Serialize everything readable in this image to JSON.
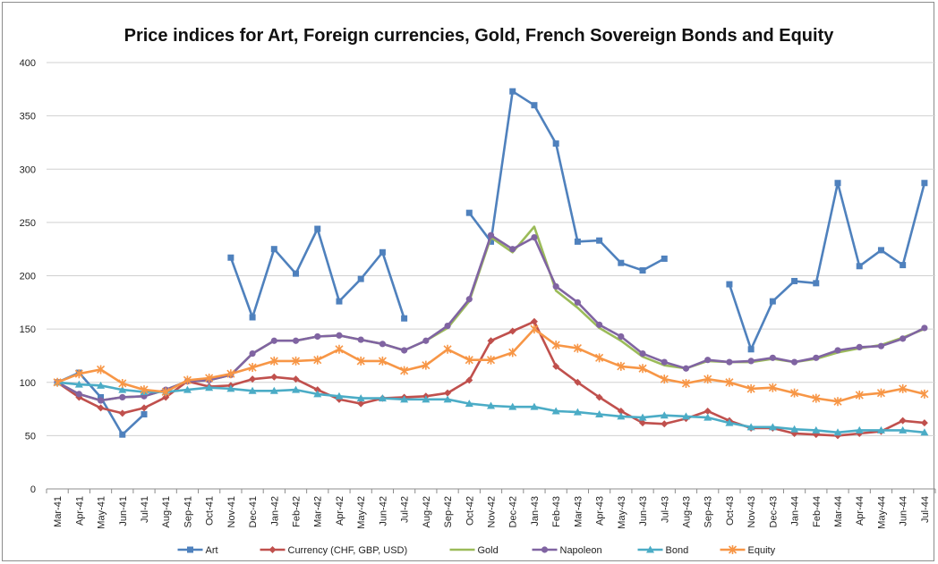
{
  "chart_data": {
    "type": "line",
    "title": "Price indices for Art, Foreign currencies, Gold, French Sovereign Bonds and Equity",
    "xlabel": "",
    "ylabel": "",
    "ylim": [
      0,
      400
    ],
    "yticks": [
      0,
      50,
      100,
      150,
      200,
      250,
      300,
      350,
      400
    ],
    "grid": "horizontal",
    "legend_position": "bottom",
    "categories": [
      "Mar-41",
      "Apr-41",
      "May-41",
      "Jun-41",
      "Jul-41",
      "Aug-41",
      "Sep-41",
      "Oct-41",
      "Nov-41",
      "Dec-41",
      "Jan-42",
      "Feb-42",
      "Mar-42",
      "Apr-42",
      "May-42",
      "Jun-42",
      "Jul-42",
      "Aug-42",
      "Sep-42",
      "Oct-42",
      "Nov-42",
      "Dec-42",
      "Jan-43",
      "Feb-43",
      "Mar-43",
      "Apr-43",
      "May-43",
      "Jun-43",
      "Jul-43",
      "Aug-43",
      "Sep-43",
      "Oct-43",
      "Nov-43",
      "Dec-43",
      "Jan-44",
      "Feb-44",
      "Mar-44",
      "Apr-44",
      "May-44",
      "Jun-44",
      "Jul-44"
    ],
    "series": [
      {
        "name": "Art",
        "color": "#4f81bd",
        "marker": "square",
        "values": [
          100,
          109,
          86,
          51,
          70,
          null,
          null,
          null,
          217,
          161,
          225,
          202,
          244,
          176,
          197,
          222,
          160,
          null,
          null,
          259,
          232,
          373,
          360,
          324,
          232,
          233,
          212,
          205,
          216,
          null,
          null,
          192,
          131,
          176,
          195,
          193,
          287,
          209,
          224,
          210,
          287
        ]
      },
      {
        "name": "Currency (CHF, GBP, USD)",
        "color": "#c0504d",
        "marker": "diamond",
        "values": [
          100,
          86,
          76,
          71,
          76,
          86,
          101,
          96,
          97,
          103,
          105,
          103,
          93,
          84,
          80,
          85,
          86,
          87,
          90,
          102,
          139,
          148,
          157,
          115,
          100,
          86,
          73,
          62,
          61,
          66,
          73,
          64,
          57,
          57,
          52,
          51,
          50,
          52,
          54,
          64,
          62
        ]
      },
      {
        "name": "Gold",
        "color": "#9bbb59",
        "marker": "none",
        "values": [
          100,
          89,
          83,
          86,
          87,
          93,
          101,
          102,
          107,
          127,
          139,
          139,
          143,
          144,
          140,
          136,
          130,
          139,
          151,
          176,
          236,
          222,
          246,
          186,
          170,
          151,
          139,
          124,
          116,
          113,
          120,
          119,
          119,
          122,
          119,
          122,
          128,
          132,
          135,
          142,
          150
        ]
      },
      {
        "name": "Napoleon",
        "color": "#8064a2",
        "marker": "circle",
        "values": [
          100,
          89,
          83,
          86,
          87,
          93,
          101,
          102,
          107,
          127,
          139,
          139,
          143,
          144,
          140,
          136,
          130,
          139,
          153,
          178,
          238,
          225,
          236,
          190,
          175,
          154,
          143,
          127,
          119,
          113,
          121,
          119,
          120,
          123,
          119,
          123,
          130,
          133,
          134,
          141,
          151
        ]
      },
      {
        "name": "Bond",
        "color": "#4bacc6",
        "marker": "triangle",
        "values": [
          100,
          98,
          97,
          93,
          91,
          91,
          93,
          95,
          94,
          92,
          92,
          93,
          89,
          87,
          85,
          85,
          84,
          84,
          84,
          80,
          78,
          77,
          77,
          73,
          72,
          70,
          68,
          67,
          69,
          68,
          67,
          62,
          58,
          58,
          56,
          55,
          53,
          55,
          55,
          55,
          53
        ]
      },
      {
        "name": "Equity",
        "color": "#f79646",
        "marker": "star",
        "values": [
          100,
          108,
          112,
          99,
          93,
          91,
          102,
          104,
          108,
          114,
          120,
          120,
          121,
          131,
          120,
          120,
          111,
          116,
          131,
          121,
          121,
          128,
          150,
          135,
          132,
          123,
          115,
          113,
          103,
          99,
          103,
          100,
          94,
          95,
          90,
          85,
          82,
          88,
          90,
          94,
          89
        ]
      }
    ]
  }
}
